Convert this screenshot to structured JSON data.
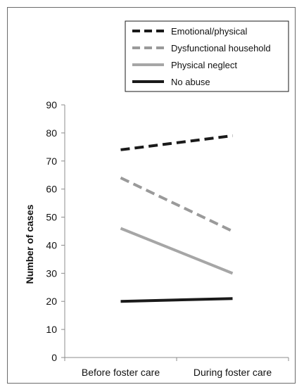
{
  "chart_data": {
    "type": "line",
    "title": "",
    "xlabel": "",
    "ylabel": "Number of cases",
    "categories": [
      "Before foster care",
      "During foster care"
    ],
    "ylim": [
      0,
      90
    ],
    "yticks": [
      0,
      10,
      20,
      30,
      40,
      50,
      60,
      70,
      80,
      90
    ],
    "grid": false,
    "legend_position": "top-right",
    "series": [
      {
        "name": "Emotional/physical",
        "values": [
          74,
          79
        ],
        "color": "#1a1a1a",
        "style": "dashed"
      },
      {
        "name": "Dysfunctional household",
        "values": [
          64,
          45
        ],
        "color": "#9a9a9a",
        "style": "dashed"
      },
      {
        "name": "Physical neglect",
        "values": [
          46,
          30
        ],
        "color": "#a6a6a6",
        "style": "solid"
      },
      {
        "name": "No abuse",
        "values": [
          20,
          21
        ],
        "color": "#1a1a1a",
        "style": "solid"
      }
    ]
  }
}
